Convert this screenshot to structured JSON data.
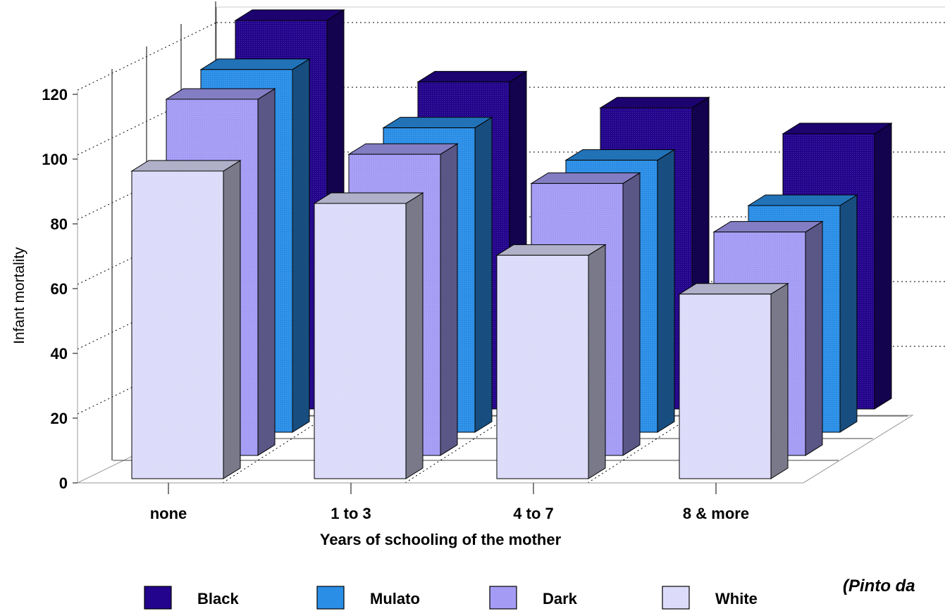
{
  "chart_data": {
    "type": "bar",
    "style": "3d-grouped",
    "categories": [
      "none",
      "1 to 3",
      "4 to 7",
      "8 & more"
    ],
    "series": [
      {
        "name": "White",
        "color": "#dcdcfa",
        "values": [
          95,
          85,
          69,
          57
        ]
      },
      {
        "name": "Dark",
        "color": "#a49cf4",
        "values": [
          110,
          93,
          84,
          69
        ]
      },
      {
        "name": "Mulato",
        "color": "#2b8ee6",
        "values": [
          112,
          94,
          84,
          70
        ]
      },
      {
        "name": "Black",
        "color": "#23048c",
        "values": [
          120,
          101,
          93,
          85
        ]
      }
    ],
    "legend_order": [
      "Black",
      "Mulato",
      "Dark",
      "White"
    ],
    "title": "",
    "xlabel": "Years of schooling of the mother",
    "ylabel": "Infant mortality",
    "ylim": [
      0,
      120
    ],
    "yticks": [
      "0",
      "20",
      "40",
      "60",
      "80",
      "100",
      "120"
    ],
    "grid": "dotted",
    "legend_position": "bottom",
    "source_note": "(Pinto da"
  }
}
